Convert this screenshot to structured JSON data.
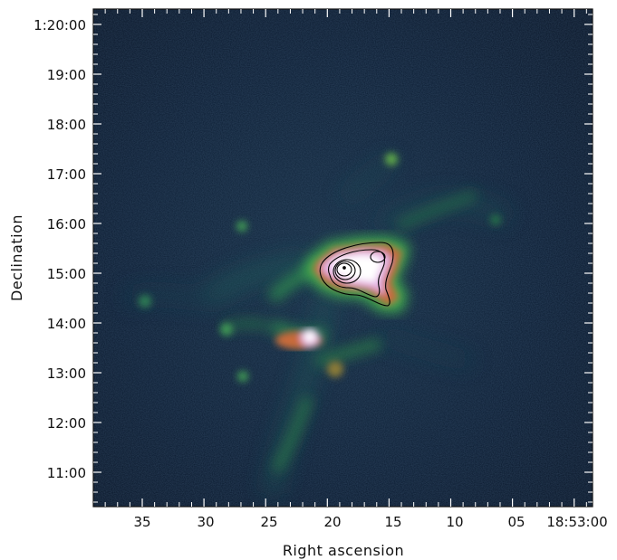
{
  "figure": {
    "xlabel": "Right ascension",
    "ylabel": "Declination",
    "x_ticks": [
      "35",
      "30",
      "25",
      "20",
      "15",
      "10",
      "05",
      "18:53:00"
    ],
    "y_ticks": [
      "1:20:00",
      "19:00",
      "18:00",
      "17:00",
      "16:00",
      "15:00",
      "14:00",
      "13:00",
      "12:00",
      "11:00"
    ],
    "colormap": [
      "#07111f",
      "#0d2a48",
      "#1f5b5a",
      "#3fae4f",
      "#c86a3a",
      "#e6b6e8",
      "#ffffff"
    ]
  }
}
